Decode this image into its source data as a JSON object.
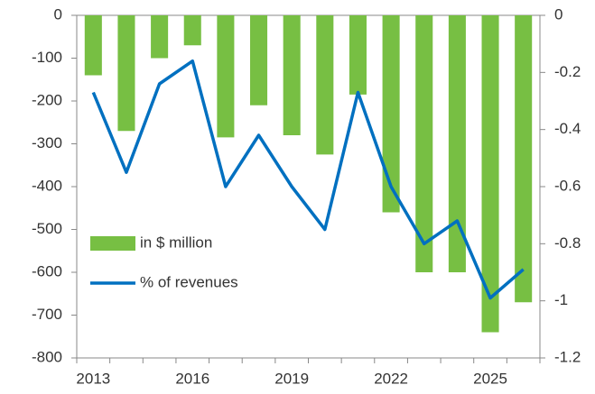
{
  "chart_data": {
    "type": "bar",
    "categories": [
      "2013",
      null,
      null,
      "2016",
      null,
      null,
      "2019",
      null,
      null,
      "2022",
      null,
      null,
      "2025",
      null
    ],
    "series": [
      {
        "name": "in $ million",
        "type": "bar",
        "color": "#77bf43",
        "values": [
          -140,
          -270,
          -100,
          -70,
          -285,
          -210,
          -280,
          -325,
          -185,
          -460,
          -600,
          -600,
          -740,
          -670
        ]
      },
      {
        "name": "% of revenues",
        "type": "line",
        "axis": "y2",
        "color": "#0070c0",
        "values": [
          -0.27,
          -0.55,
          -0.24,
          -0.16,
          -0.6,
          -0.42,
          -0.6,
          -0.75,
          -0.27,
          -0.6,
          -0.8,
          -0.72,
          -0.99,
          -0.89
        ]
      }
    ],
    "ylim": [
      0,
      -800
    ],
    "yticks": [
      0,
      -100,
      -200,
      -300,
      -400,
      -500,
      -600,
      -700,
      -800
    ],
    "y2lim": [
      0,
      -1.2
    ],
    "y2ticks": [
      0,
      -0.2,
      -0.4,
      -0.6,
      -0.8,
      -1,
      -1.2
    ],
    "grid": false,
    "legend": "left"
  }
}
